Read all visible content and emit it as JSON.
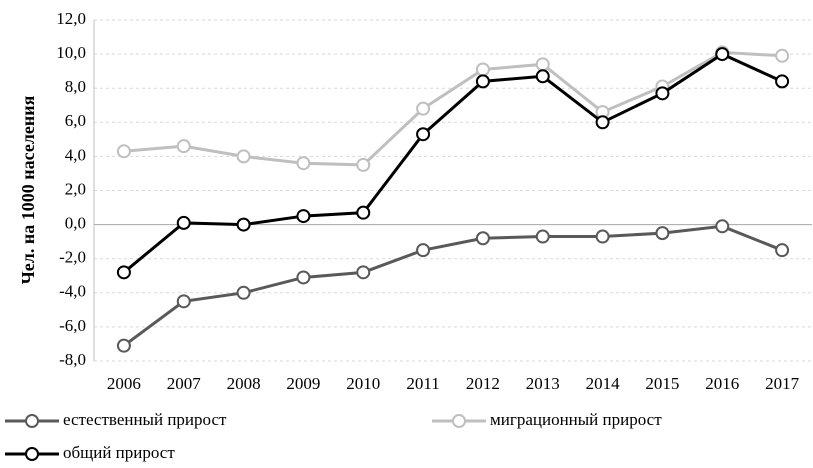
{
  "chart_data": {
    "type": "line",
    "y_label": "Чел. на 1000 населения",
    "categories": [
      "2006",
      "2007",
      "2008",
      "2009",
      "2010",
      "2011",
      "2012",
      "2013",
      "2014",
      "2015",
      "2016",
      "2017"
    ],
    "series": [
      {
        "name": "естественный прирост",
        "color": "#595959",
        "values": [
          -7.1,
          -4.5,
          -4.0,
          -3.1,
          -2.8,
          -1.5,
          -0.8,
          -0.7,
          -0.7,
          -0.5,
          -0.1,
          -1.5
        ]
      },
      {
        "name": "миграционный прирост",
        "color": "#bfbfbf",
        "values": [
          4.3,
          4.6,
          4.0,
          3.6,
          3.5,
          6.8,
          9.1,
          9.4,
          6.6,
          8.1,
          10.1,
          9.9
        ]
      },
      {
        "name": "общий прирост",
        "color": "#000000",
        "values": [
          -2.8,
          0.1,
          0.0,
          0.5,
          0.7,
          5.3,
          8.4,
          8.7,
          6.0,
          7.7,
          10.0,
          8.4
        ]
      }
    ],
    "ylim": [
      -8,
      12
    ],
    "yticks": [
      {
        "value": 12,
        "label": "12,0"
      },
      {
        "value": 10,
        "label": "10,0"
      },
      {
        "value": 8,
        "label": "8,0"
      },
      {
        "value": 6,
        "label": "6,0"
      },
      {
        "value": 4,
        "label": "4,0"
      },
      {
        "value": 2,
        "label": "2,0"
      },
      {
        "value": 0,
        "label": "0,0"
      },
      {
        "value": -2,
        "label": "-2,0"
      },
      {
        "value": -4,
        "label": "-4,0"
      },
      {
        "value": -6,
        "label": "-6,0"
      },
      {
        "value": -8,
        "label": "-8,0"
      }
    ],
    "grid": true,
    "legend": "bottom"
  }
}
